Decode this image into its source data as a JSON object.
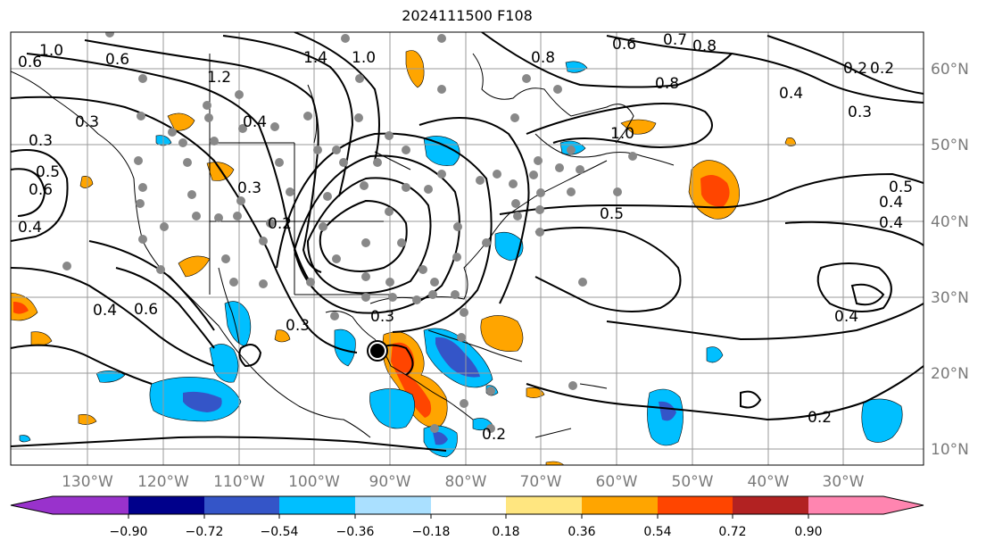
{
  "title": "2024111500 F108",
  "lon_ticks": [
    "130°W",
    "120°W",
    "110°W",
    "100°W",
    "90°W",
    "80°W",
    "70°W",
    "60°W",
    "50°W",
    "40°W",
    "30°W"
  ],
  "lat_ticks": [
    "60°N",
    "50°N",
    "40°N",
    "30°N",
    "20°N",
    "10°N"
  ],
  "colorbar": {
    "labels": [
      "−0.90",
      "−0.72",
      "−0.54",
      "−0.36",
      "−0.18",
      "0.18",
      "0.36",
      "0.54",
      "0.72",
      "0.90"
    ],
    "colors": [
      "#9932cc",
      "#00008b",
      "#3455c8",
      "#00bfff",
      "#aae0ff",
      "#ffffff",
      "#ffe680",
      "#ffa500",
      "#ff4500",
      "#b22222",
      "#ff85b0"
    ]
  },
  "contour_labels": [
    "0.6",
    "0.7",
    "0.8",
    "0.8",
    "0.4",
    "0.3",
    "0.2",
    "1.0",
    "0.6",
    "0.3",
    "1.2",
    "1.4",
    "1.0",
    "0.4",
    "0.3",
    "0.6",
    "0.5",
    "0.4",
    "0.8",
    "0.2",
    "0.6",
    "0.5",
    "0.3",
    "0.4",
    "0.6",
    "0.4",
    "0.3",
    "0.2",
    "0.2",
    "0.2",
    "0.4",
    "0.4",
    "0.5",
    "1.0",
    "0.3"
  ],
  "colors": {
    "contour": "#000000",
    "grid": "#9a9a9a",
    "station": "#888888"
  }
}
